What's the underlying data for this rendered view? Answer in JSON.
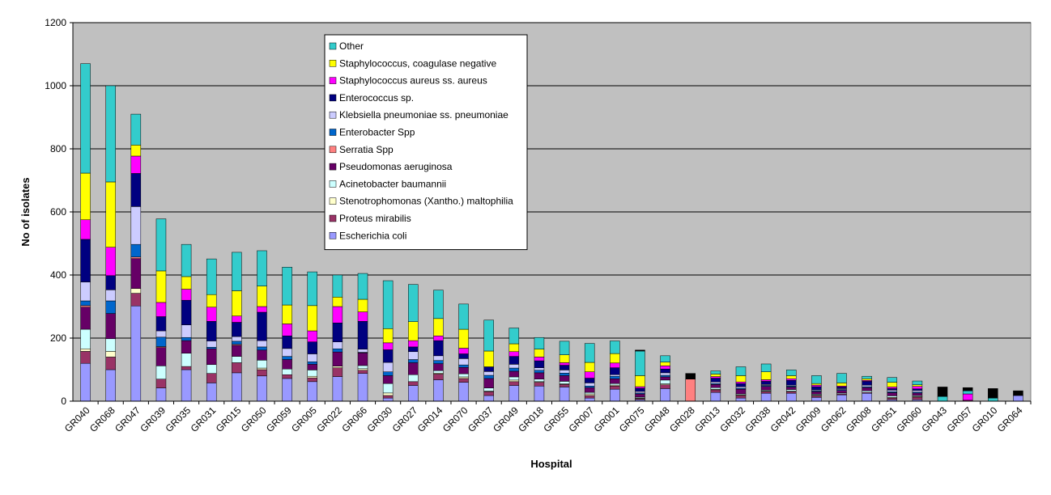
{
  "chart_data": {
    "type": "bar",
    "stacked": true,
    "xlabel": "Hospital",
    "ylabel": "No of isolates",
    "ylim": [
      0,
      1200
    ],
    "yticks": [
      0,
      200,
      400,
      600,
      800,
      1000,
      1200
    ],
    "grid": true,
    "legend_position": "top-center",
    "plot_background": "#C0C0C0",
    "categories": [
      "GR040",
      "GR068",
      "GR047",
      "GR039",
      "GR035",
      "GR031",
      "GR015",
      "GR050",
      "GR059",
      "GR005",
      "GR022",
      "GR066",
      "GR030",
      "GR027",
      "GR014",
      "GR070",
      "GR037",
      "GR049",
      "GR018",
      "GR055",
      "GR007",
      "GR001",
      "GR075",
      "GR048",
      "GR028",
      "GR013",
      "GR032",
      "GR038",
      "GR042",
      "GR009",
      "GR062",
      "GR008",
      "GR051",
      "GR060",
      "GR043",
      "GR057",
      "GR010",
      "GR064"
    ],
    "series": [
      {
        "name": "Escherichia coli",
        "color": "#9999FF",
        "values": [
          120,
          100,
          302,
          42,
          100,
          58,
          90,
          80,
          72,
          62,
          78,
          88,
          10,
          50,
          68,
          60,
          18,
          50,
          48,
          45,
          10,
          38,
          5,
          40,
          0,
          28,
          10,
          25,
          25,
          12,
          20,
          25,
          5,
          5,
          0,
          0,
          0,
          18
        ]
      },
      {
        "name": "Proteus mirabilis",
        "color": "#993366",
        "values": [
          38,
          40,
          40,
          28,
          10,
          30,
          32,
          20,
          12,
          12,
          28,
          10,
          8,
          12,
          18,
          12,
          12,
          12,
          12,
          8,
          8,
          10,
          3,
          12,
          0,
          8,
          8,
          5,
          5,
          5,
          3,
          3,
          5,
          8,
          0,
          3,
          0,
          0
        ]
      },
      {
        "name": "Stenotrophomonas (Xantho.) maltophilia",
        "color": "#FFFFCC",
        "values": [
          8,
          18,
          15,
          0,
          0,
          0,
          0,
          5,
          0,
          5,
          5,
          5,
          8,
          0,
          3,
          5,
          2,
          5,
          2,
          2,
          5,
          3,
          2,
          3,
          0,
          2,
          2,
          2,
          2,
          2,
          0,
          0,
          2,
          2,
          0,
          0,
          0,
          0
        ]
      },
      {
        "name": "Acinetobacter baumannii",
        "color": "#CCFFFF",
        "values": [
          62,
          40,
          0,
          42,
          42,
          28,
          20,
          25,
          18,
          20,
          0,
          10,
          30,
          22,
          8,
          10,
          10,
          10,
          8,
          8,
          5,
          5,
          3,
          12,
          0,
          5,
          3,
          3,
          5,
          3,
          3,
          5,
          5,
          3,
          0,
          0,
          0,
          0
        ]
      },
      {
        "name": "Pseudomonas aeruginosa",
        "color": "#660066",
        "values": [
          70,
          80,
          95,
          58,
          40,
          50,
          35,
          32,
          30,
          18,
          45,
          40,
          25,
          38,
          22,
          20,
          30,
          18,
          20,
          18,
          15,
          15,
          10,
          10,
          0,
          10,
          15,
          12,
          8,
          8,
          8,
          10,
          10,
          8,
          0,
          0,
          0,
          0
        ]
      },
      {
        "name": "Serratia Spp",
        "color": "#FF8080",
        "values": [
          5,
          0,
          5,
          3,
          0,
          0,
          3,
          0,
          0,
          0,
          0,
          0,
          0,
          0,
          0,
          0,
          0,
          0,
          0,
          0,
          0,
          0,
          0,
          0,
          70,
          0,
          0,
          0,
          0,
          0,
          0,
          0,
          0,
          0,
          0,
          0,
          0,
          0
        ]
      },
      {
        "name": "Enterobacter Spp",
        "color": "#0066CC",
        "values": [
          15,
          40,
          40,
          30,
          10,
          5,
          10,
          10,
          10,
          8,
          10,
          2,
          12,
          10,
          10,
          8,
          10,
          10,
          8,
          8,
          5,
          8,
          3,
          5,
          0,
          3,
          3,
          3,
          3,
          3,
          3,
          3,
          3,
          3,
          0,
          0,
          0,
          0
        ]
      },
      {
        "name": "Klebsiella pneumoniae ss. pneumoniae",
        "color": "#CCCCFF",
        "values": [
          60,
          35,
          120,
          20,
          40,
          20,
          15,
          20,
          25,
          25,
          22,
          10,
          30,
          25,
          15,
          20,
          12,
          12,
          8,
          10,
          10,
          5,
          5,
          8,
          0,
          5,
          5,
          3,
          3,
          3,
          3,
          5,
          5,
          5,
          0,
          0,
          0,
          0
        ]
      },
      {
        "name": "Enterococcus sp.",
        "color": "#000080",
        "values": [
          135,
          45,
          105,
          45,
          78,
          62,
          45,
          90,
          40,
          38,
          60,
          88,
          40,
          15,
          48,
          15,
          15,
          25,
          22,
          15,
          15,
          22,
          10,
          12,
          0,
          12,
          10,
          10,
          15,
          10,
          5,
          12,
          5,
          5,
          0,
          0,
          0,
          0
        ]
      },
      {
        "name": "Staphylococcus aureus ss. aureus",
        "color": "#FF00FF",
        "values": [
          62,
          90,
          55,
          45,
          35,
          45,
          20,
          18,
          38,
          35,
          52,
          30,
          22,
          20,
          15,
          18,
          0,
          15,
          12,
          8,
          20,
          15,
          5,
          10,
          0,
          5,
          5,
          5,
          5,
          5,
          3,
          3,
          5,
          8,
          0,
          20,
          0,
          0
        ]
      },
      {
        "name": "Staphylococcus, coagulase negative",
        "color": "#FFFF00",
        "values": [
          148,
          207,
          35,
          100,
          40,
          40,
          80,
          65,
          60,
          80,
          30,
          40,
          45,
          60,
          55,
          60,
          50,
          25,
          25,
          25,
          30,
          30,
          35,
          12,
          0,
          8,
          20,
          25,
          10,
          5,
          10,
          5,
          15,
          5,
          0,
          0,
          0,
          0
        ]
      },
      {
        "name": "Other",
        "color": "#33CCCC",
        "values": [
          347,
          305,
          98,
          165,
          102,
          113,
          122,
          112,
          120,
          107,
          70,
          82,
          152,
          118,
          90,
          80,
          98,
          50,
          37,
          43,
          60,
          40,
          78,
          20,
          0,
          10,
          28,
          25,
          18,
          25,
          30,
          8,
          15,
          12,
          15,
          10,
          10,
          0
        ]
      },
      {
        "name": "",
        "color": "#000000",
        "values": [
          0,
          0,
          0,
          0,
          0,
          0,
          0,
          0,
          0,
          0,
          0,
          0,
          0,
          0,
          0,
          0,
          0,
          0,
          0,
          0,
          0,
          0,
          3,
          0,
          18,
          0,
          0,
          0,
          0,
          0,
          0,
          0,
          0,
          0,
          30,
          10,
          30,
          15
        ]
      }
    ]
  }
}
